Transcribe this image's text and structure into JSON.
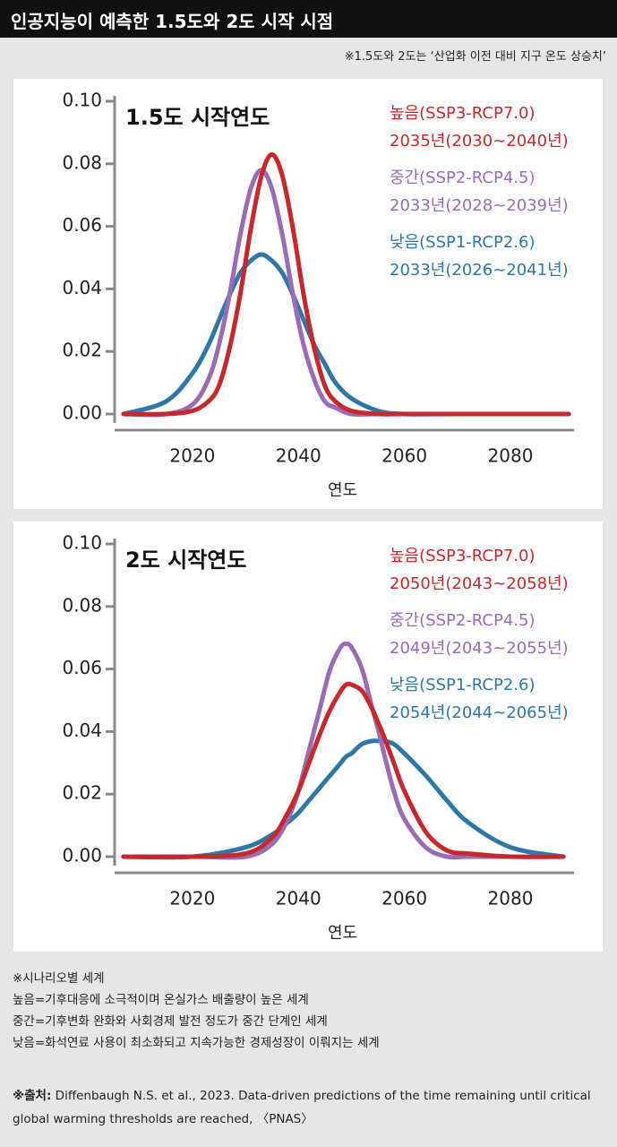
{
  "header": {
    "title": "인공지능이 예측한 1.5도와 2도 시작 시점",
    "subtitle": "※1.5도와 2도는 ‘산업화 이전 대비 지구 온도 상승치’"
  },
  "chart_data": [
    {
      "type": "line",
      "title": "1.5도 시작연도",
      "xlabel": "연도",
      "x": [
        2007,
        2015,
        2020,
        2023,
        2025,
        2027,
        2029,
        2031,
        2033,
        2035,
        2037,
        2039,
        2041,
        2043,
        2045,
        2047,
        2050,
        2055,
        2060,
        2070,
        2091
      ],
      "xlim": [
        2006,
        2092
      ],
      "xticks": [
        2020,
        2040,
        2060,
        2080
      ],
      "ylim": [
        0,
        0.1
      ],
      "yticks": [
        {
          "value": 0.1,
          "label": "0.10"
        },
        0.08,
        0.06,
        0.04,
        0.02,
        {
          "value": 0,
          "label": "0.00"
        }
      ],
      "series": [
        {
          "name": "높음(SSP3-RCP7.0)",
          "detail": "2035년(2030~2040년)",
          "color": "#c8282c",
          "values": [
            0,
            0,
            0.001,
            0.004,
            0.009,
            0.021,
            0.038,
            0.059,
            0.076,
            0.083,
            0.076,
            0.059,
            0.038,
            0.021,
            0.009,
            0.004,
            0.001,
            0,
            0,
            0,
            0
          ]
        },
        {
          "name": "중간(SSP2-RCP4.5)",
          "detail": "2033년(2028~2039년)",
          "color": "#9a6cb6",
          "values": [
            0,
            0,
            0.003,
            0.011,
            0.022,
            0.038,
            0.057,
            0.072,
            0.078,
            0.072,
            0.057,
            0.038,
            0.022,
            0.011,
            0.004,
            0.002,
            0,
            0,
            0,
            0,
            0
          ]
        },
        {
          "name": "낮음(SSP1-RCP2.6)",
          "detail": "2033년(2026~2041년)",
          "color": "#2f77a6",
          "values": [
            0,
            0.004,
            0.013,
            0.022,
            0.03,
            0.038,
            0.045,
            0.049,
            0.051,
            0.049,
            0.045,
            0.038,
            0.03,
            0.022,
            0.016,
            0.01,
            0.005,
            0.001,
            0,
            0,
            0
          ]
        }
      ]
    },
    {
      "type": "line",
      "title": "2도 시작연도",
      "xlabel": "연도",
      "x": [
        2007,
        2020,
        2030,
        2035,
        2038,
        2040,
        2042,
        2044,
        2046,
        2048,
        2049,
        2050,
        2052,
        2054,
        2055,
        2056,
        2058,
        2060,
        2064,
        2068,
        2072,
        2080,
        2090
      ],
      "xlim": [
        2006,
        2092
      ],
      "xticks": [
        2020,
        2040,
        2060,
        2080
      ],
      "ylim": [
        0,
        0.1
      ],
      "yticks": [
        {
          "value": 0.1,
          "label": "0.10"
        },
        0.08,
        0.06,
        0.04,
        0.02,
        {
          "value": 0,
          "label": "0.00"
        }
      ],
      "series": [
        {
          "name": "높음(SSP3-RCP7.0)",
          "detail": "2050년(2043~2058년)",
          "color": "#c8282c",
          "values": [
            0,
            0,
            0.001,
            0.006,
            0.014,
            0.021,
            0.03,
            0.039,
            0.047,
            0.053,
            0.055,
            0.055,
            0.053,
            0.047,
            0.043,
            0.039,
            0.03,
            0.021,
            0.008,
            0.002,
            0.001,
            0,
            0
          ]
        },
        {
          "name": "중간(SSP2-RCP4.5)",
          "detail": "2049년(2043~2055년)",
          "color": "#9a6cb6",
          "values": [
            0,
            0,
            0,
            0.004,
            0.012,
            0.021,
            0.034,
            0.047,
            0.06,
            0.067,
            0.068,
            0.067,
            0.06,
            0.047,
            0.041,
            0.034,
            0.021,
            0.012,
            0.003,
            0,
            0,
            0,
            0
          ]
        },
        {
          "name": "낮음(SSP1-RCP2.6)",
          "detail": "2054년(2044~2065년)",
          "color": "#2f77a6",
          "values": [
            0,
            0,
            0.003,
            0.007,
            0.011,
            0.014,
            0.018,
            0.022,
            0.026,
            0.03,
            0.032,
            0.033,
            0.036,
            0.037,
            0.037,
            0.037,
            0.036,
            0.033,
            0.026,
            0.018,
            0.011,
            0.003,
            0
          ]
        }
      ]
    }
  ],
  "notes": [
    "※시나리오별 세계",
    "높음=기후대응에 소극적이며 온실가스 배출량이 높은 세계",
    "중간=기후변화 완화와 사회경제 발전 정도가 중간 단계인 세계",
    "낮음=화석연료 사용이 최소화되고 지속가능한 경제성장이 이뤄지는 세계"
  ],
  "source": {
    "label": "※출처:",
    "text": "Diffenbaugh N.S. et al., 2023. Data-driven predictions of the time remaining until critical global warming thresholds are reached, 〈PNAS〉"
  }
}
